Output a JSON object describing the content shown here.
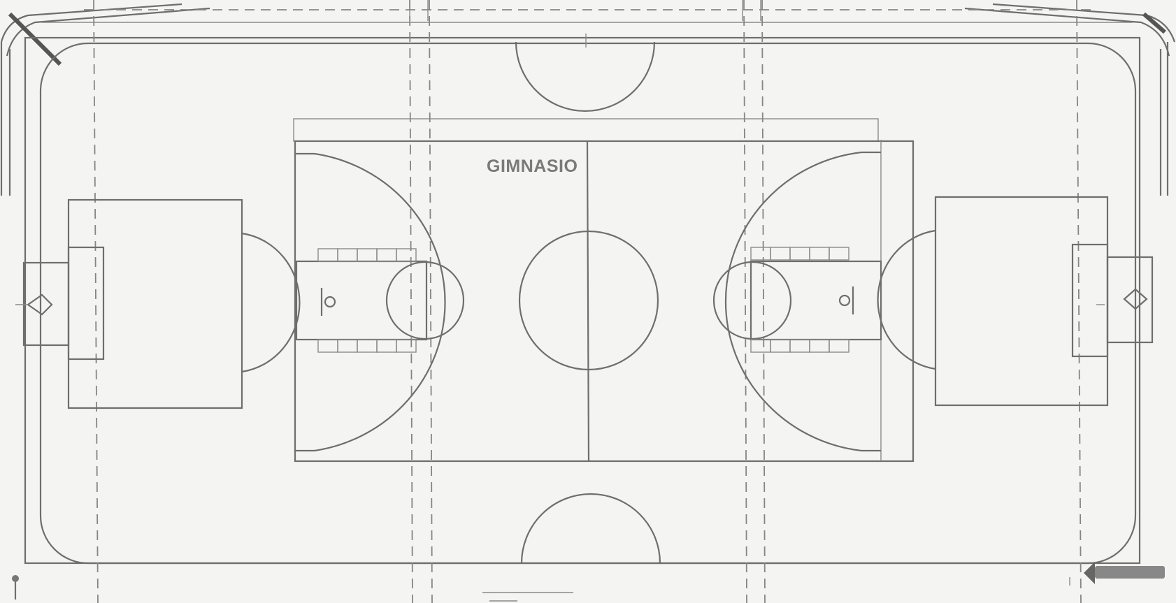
{
  "plan": {
    "label": "GIMNASIO"
  }
}
